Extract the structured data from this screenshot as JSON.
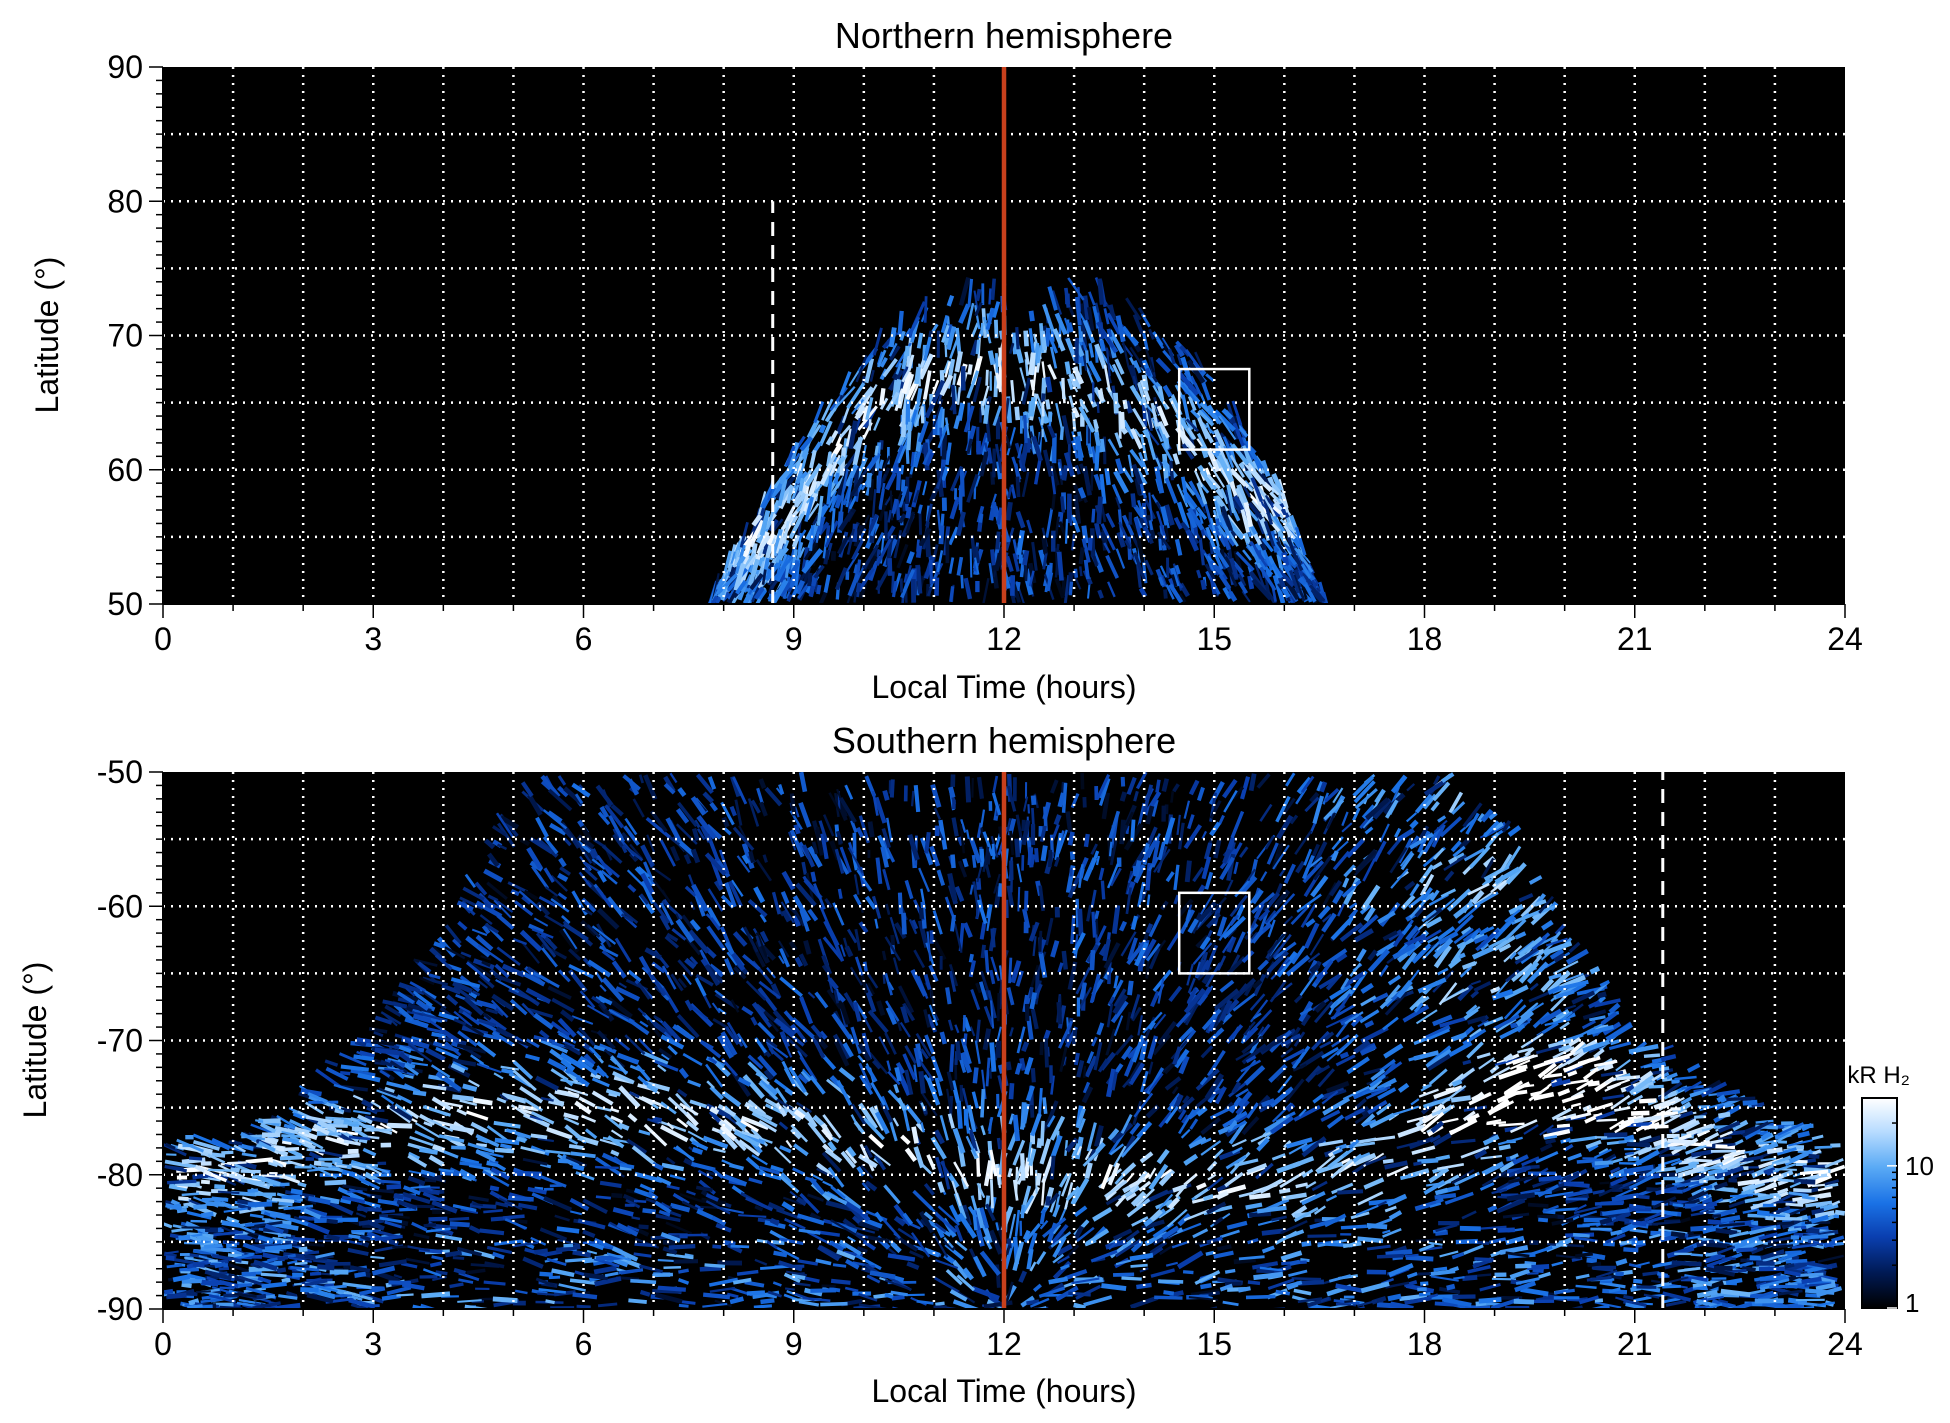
{
  "chart_data": [
    {
      "type": "heatmap",
      "title": "Northern hemisphere",
      "xlabel": "Local Time (hours)",
      "ylabel": "Latitude (°)",
      "xlim": [
        0,
        24
      ],
      "ylim": [
        50,
        90
      ],
      "xticks": [
        "0",
        "3",
        "6",
        "9",
        "12",
        "15",
        "18",
        "21",
        "24"
      ],
      "yticks": [
        "50",
        "60",
        "70",
        "80",
        "90"
      ],
      "grid": true,
      "noon_line_lt": 12,
      "dashed_line_lt": 8.7,
      "dashed_line_lat_range": [
        50,
        80
      ],
      "box": {
        "lt": [
          14.5,
          15.5
        ],
        "lat": [
          61.5,
          67.5
        ]
      },
      "emission_region": {
        "lt_range": [
          7.8,
          16.6
        ],
        "outer_edge_lat": [
          {
            "lt": 7.8,
            "lat": 50
          },
          {
            "lt": 8.5,
            "lat": 57
          },
          {
            "lt": 9.2,
            "lat": 63
          },
          {
            "lt": 10,
            "lat": 68
          },
          {
            "lt": 11,
            "lat": 72
          },
          {
            "lt": 11.8,
            "lat": 73
          },
          {
            "lt": 12.4,
            "lat": 71.5
          },
          {
            "lt": 13,
            "lat": 73
          },
          {
            "lt": 14,
            "lat": 71.5
          },
          {
            "lt": 15,
            "lat": 67
          },
          {
            "lt": 16,
            "lat": 58
          },
          {
            "lt": 16.6,
            "lat": 50
          }
        ],
        "bright_oval_lat": [
          {
            "lt": 8.6,
            "lat": 54
          },
          {
            "lt": 9.5,
            "lat": 61
          },
          {
            "lt": 10.5,
            "lat": 65
          },
          {
            "lt": 11.5,
            "lat": 67
          },
          {
            "lt": 12.5,
            "lat": 66
          },
          {
            "lt": 13.5,
            "lat": 64.5
          },
          {
            "lt": 14.5,
            "lat": 62
          },
          {
            "lt": 15.5,
            "lat": 57
          }
        ]
      }
    },
    {
      "type": "heatmap",
      "title": "Southern hemisphere",
      "xlabel": "Local Time (hours)",
      "ylabel": "Latitude (°)",
      "xlim": [
        0,
        24
      ],
      "ylim": [
        -90,
        -50
      ],
      "xticks": [
        "0",
        "3",
        "6",
        "9",
        "12",
        "15",
        "18",
        "21",
        "24"
      ],
      "yticks": [
        "-90",
        "-80",
        "-70",
        "-60",
        "-50"
      ],
      "grid": true,
      "noon_line_lt": 12,
      "dashed_line_lt": 21.4,
      "dashed_line_lat_range": [
        -90,
        -50
      ],
      "box": {
        "lt": [
          14.5,
          15.5
        ],
        "lat": [
          -65,
          -59
        ]
      },
      "emission_region": {
        "outer_edge_lat": [
          {
            "lt": 0,
            "lat": -77
          },
          {
            "lt": 1,
            "lat": -77
          },
          {
            "lt": 2,
            "lat": -73
          },
          {
            "lt": 3,
            "lat": -68
          },
          {
            "lt": 4,
            "lat": -61
          },
          {
            "lt": 5,
            "lat": -50
          },
          {
            "lt": 19,
            "lat": -50
          },
          {
            "lt": 20,
            "lat": -61
          },
          {
            "lt": 21,
            "lat": -68
          },
          {
            "lt": 22,
            "lat": -72
          },
          {
            "lt": 23,
            "lat": -75
          },
          {
            "lt": 24,
            "lat": -77
          }
        ],
        "bright_oval_lat": [
          {
            "lt": 1,
            "lat": -80
          },
          {
            "lt": 2.5,
            "lat": -77
          },
          {
            "lt": 4,
            "lat": -75.5
          },
          {
            "lt": 6,
            "lat": -75
          },
          {
            "lt": 8,
            "lat": -75.5
          },
          {
            "lt": 10,
            "lat": -77
          },
          {
            "lt": 12,
            "lat": -79
          },
          {
            "lt": 14,
            "lat": -80
          },
          {
            "lt": 16,
            "lat": -80
          },
          {
            "lt": 17.5,
            "lat": -79.5
          },
          {
            "lt": 19,
            "lat": -76
          },
          {
            "lt": 20,
            "lat": -73
          },
          {
            "lt": 21.5,
            "lat": -76
          },
          {
            "lt": 23,
            "lat": -80
          }
        ],
        "dusk_arc_lat": [
          {
            "lt": 18.5,
            "lat": -50
          },
          {
            "lt": 18.8,
            "lat": -58
          },
          {
            "lt": 19,
            "lat": -65
          },
          {
            "lt": 19.3,
            "lat": -72
          },
          {
            "lt": 19.8,
            "lat": -77
          }
        ]
      }
    }
  ],
  "colorbar": {
    "label": "kR H₂",
    "scale": "log",
    "range": [
      1,
      30
    ],
    "tick_labels": [
      "1",
      "10"
    ],
    "tick_values": [
      1,
      10
    ],
    "colors": [
      "#000000",
      "#001a55",
      "#0a3fb0",
      "#1a72e6",
      "#5aaaf5",
      "#b8dcff",
      "#ffffff"
    ]
  },
  "colors": {
    "background": "#000000",
    "noon_line": "#c8401c",
    "grid": "#ffffff"
  }
}
